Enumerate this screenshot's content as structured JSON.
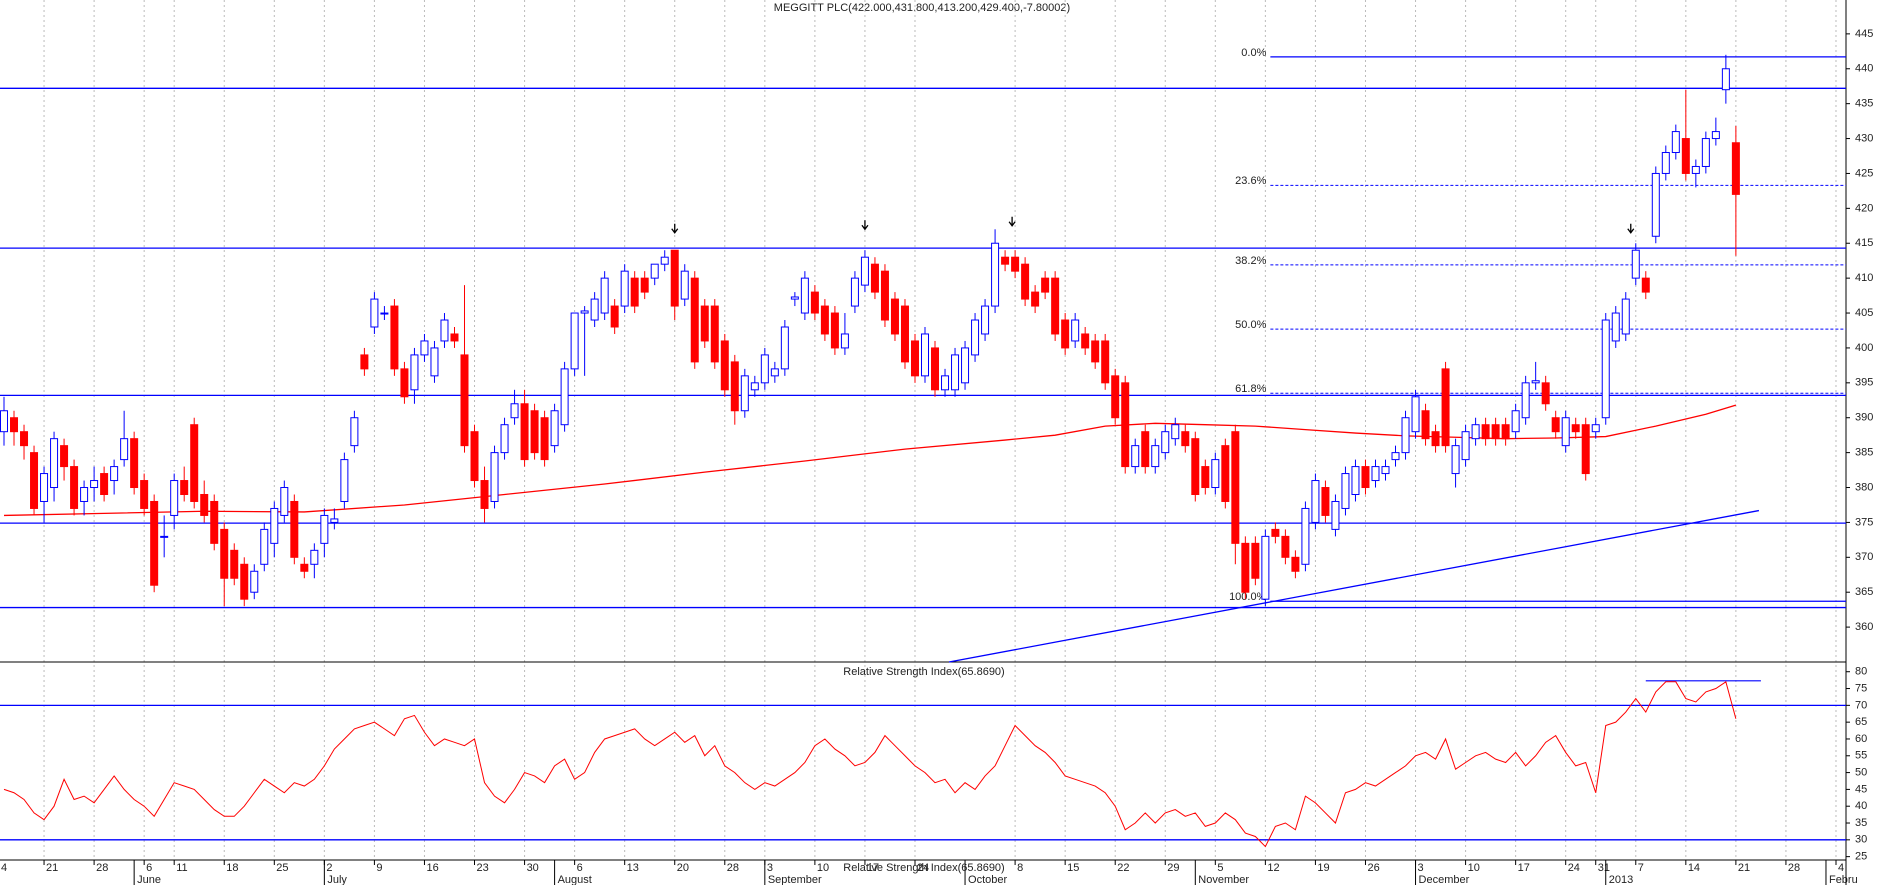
{
  "chart_data": {
    "type": "candlestick",
    "title": "MEGGITT PLC(422.000,431.800,413.200,429.400,-7.80002)",
    "colors": {
      "up": "#0000ff",
      "down": "#ff0000",
      "lines": "#0000ff",
      "ma": "#ff0000"
    },
    "xlim": [
      -0.4,
      184.0
    ],
    "xticks": [
      {
        "value": -0.5,
        "label": "4"
      },
      {
        "value": 4,
        "label": "21"
      },
      {
        "value": 9,
        "label": "28"
      },
      {
        "value": 14,
        "label": "6"
      },
      {
        "value": 17,
        "label": "11"
      },
      {
        "value": 22,
        "label": "18"
      },
      {
        "value": 27,
        "label": "25"
      },
      {
        "value": 32,
        "label": "2"
      },
      {
        "value": 37,
        "label": "9"
      },
      {
        "value": 42,
        "label": "16"
      },
      {
        "value": 47,
        "label": "23"
      },
      {
        "value": 52,
        "label": "30"
      },
      {
        "value": 57,
        "label": "6"
      },
      {
        "value": 62,
        "label": "13"
      },
      {
        "value": 67,
        "label": "20"
      },
      {
        "value": 72,
        "label": "28"
      },
      {
        "value": 76,
        "label": "3"
      },
      {
        "value": 81,
        "label": "10"
      },
      {
        "value": 86,
        "label": "17"
      },
      {
        "value": 91,
        "label": "24"
      },
      {
        "value": 101,
        "label": "8"
      },
      {
        "value": 106,
        "label": "15"
      },
      {
        "value": 111,
        "label": "22"
      },
      {
        "value": 116,
        "label": "29"
      },
      {
        "value": 121,
        "label": "5"
      },
      {
        "value": 126,
        "label": "12"
      },
      {
        "value": 131,
        "label": "19"
      },
      {
        "value": 136,
        "label": "26"
      },
      {
        "value": 141,
        "label": "3"
      },
      {
        "value": 146,
        "label": "10"
      },
      {
        "value": 151,
        "label": "17"
      },
      {
        "value": 156,
        "label": "24"
      },
      {
        "value": 159,
        "label": "31"
      },
      {
        "value": 163,
        "label": "7"
      },
      {
        "value": 168,
        "label": "14"
      },
      {
        "value": 173,
        "label": "21"
      },
      {
        "value": 178,
        "label": "28"
      },
      {
        "value": 183,
        "label": "4"
      }
    ],
    "months": [
      {
        "value": 13,
        "label": "June"
      },
      {
        "value": 32,
        "label": "July"
      },
      {
        "value": 55,
        "label": "August"
      },
      {
        "value": 76,
        "label": "September"
      },
      {
        "value": 96,
        "label": "October"
      },
      {
        "value": 119,
        "label": "November"
      },
      {
        "value": 141,
        "label": "December"
      },
      {
        "value": 160,
        "label": "2013"
      },
      {
        "value": 182,
        "label": "Febru"
      }
    ],
    "ylim": [
      355,
      446.7
    ],
    "yticks": [
      360,
      365,
      370,
      375,
      380,
      385,
      390,
      395,
      400,
      405,
      410,
      415,
      420,
      425,
      430,
      435,
      440,
      445
    ],
    "ohlc": [
      [
        388,
        393,
        386,
        391
      ],
      [
        390,
        391,
        386,
        388
      ],
      [
        388,
        389,
        384,
        386
      ],
      [
        385,
        386,
        376,
        377
      ],
      [
        378,
        383,
        375,
        382
      ],
      [
        380,
        388,
        378,
        387
      ],
      [
        386,
        387,
        381,
        383
      ],
      [
        383,
        384,
        376,
        377
      ],
      [
        378,
        381,
        376,
        380
      ],
      [
        380,
        383,
        378,
        381
      ],
      [
        382,
        383,
        378,
        379
      ],
      [
        381,
        384,
        379,
        383
      ],
      [
        384,
        391,
        383,
        387
      ],
      [
        387,
        388,
        379,
        380
      ],
      [
        381,
        382,
        376,
        377
      ],
      [
        378,
        379,
        365,
        366
      ],
      [
        373,
        376,
        370,
        373
      ],
      [
        376,
        382,
        374,
        381
      ],
      [
        381,
        383,
        378,
        379
      ],
      [
        389,
        390,
        377,
        378
      ],
      [
        379,
        381,
        375,
        376
      ],
      [
        378,
        379,
        371,
        372
      ],
      [
        374,
        375,
        363,
        367
      ],
      [
        371,
        372,
        366,
        367
      ],
      [
        369,
        370,
        363,
        364
      ],
      [
        365,
        369,
        364,
        368
      ],
      [
        369,
        375,
        368,
        374
      ],
      [
        372,
        378,
        370,
        377
      ],
      [
        376,
        381,
        375,
        380
      ],
      [
        378,
        379,
        369,
        370
      ],
      [
        369,
        370,
        367,
        368
      ],
      [
        369,
        372,
        367,
        371
      ],
      [
        372,
        377,
        370,
        376
      ],
      [
        375,
        377,
        374,
        375.5
      ],
      [
        378,
        385,
        377,
        384
      ],
      [
        386,
        391,
        385,
        390
      ],
      [
        399,
        400,
        396,
        397
      ],
      [
        403,
        408,
        402,
        407
      ],
      [
        405,
        406,
        404,
        405
      ],
      [
        406,
        407,
        396,
        397
      ],
      [
        397,
        398,
        392,
        393
      ],
      [
        394,
        400,
        392,
        399
      ],
      [
        399,
        402,
        398,
        401
      ],
      [
        396,
        401,
        395,
        400
      ],
      [
        401,
        405,
        400,
        404
      ],
      [
        402,
        403,
        400,
        401
      ],
      [
        399,
        409,
        385,
        386
      ],
      [
        388,
        389,
        380,
        381
      ],
      [
        381,
        383,
        375,
        377
      ],
      [
        378,
        386,
        377,
        385
      ],
      [
        385,
        390,
        384,
        389
      ],
      [
        390,
        394,
        389,
        392
      ],
      [
        392,
        394,
        383,
        384
      ],
      [
        391,
        392,
        384,
        385
      ],
      [
        390,
        391,
        383,
        384
      ],
      [
        386,
        392,
        385,
        391
      ],
      [
        389,
        398,
        388,
        397
      ],
      [
        397,
        405,
        396,
        405
      ],
      [
        405,
        406,
        396,
        405.3
      ],
      [
        404,
        408,
        403,
        407
      ],
      [
        405,
        411,
        404,
        410
      ],
      [
        406,
        407,
        402,
        403
      ],
      [
        406,
        412,
        405,
        411
      ],
      [
        410,
        411,
        405,
        406
      ],
      [
        410,
        411,
        407,
        408
      ],
      [
        410,
        412,
        409,
        412
      ],
      [
        412,
        414,
        411,
        413
      ],
      [
        414,
        414,
        404,
        406
      ],
      [
        407,
        412,
        406,
        411
      ],
      [
        410,
        411,
        397,
        398
      ],
      [
        406,
        407,
        400,
        401
      ],
      [
        406,
        407,
        397,
        398
      ],
      [
        401,
        402,
        393,
        394
      ],
      [
        398,
        399,
        389,
        391
      ],
      [
        391,
        397,
        390,
        396
      ],
      [
        394,
        396,
        393,
        395
      ],
      [
        395,
        400,
        394,
        399
      ],
      [
        396,
        398,
        395,
        397
      ],
      [
        397,
        404,
        396,
        403
      ],
      [
        407,
        408,
        406,
        407.3
      ],
      [
        405,
        411,
        404,
        410
      ],
      [
        408,
        409,
        404,
        405
      ],
      [
        406,
        407,
        401,
        402
      ],
      [
        405,
        406,
        399,
        400
      ],
      [
        400,
        405,
        399,
        402
      ],
      [
        406,
        411,
        405,
        410
      ],
      [
        409,
        414,
        408,
        413
      ],
      [
        412,
        413,
        407,
        408
      ],
      [
        411,
        412,
        403,
        404
      ],
      [
        407,
        408,
        401,
        402
      ],
      [
        406,
        407,
        397,
        398
      ],
      [
        401,
        402,
        395,
        396
      ],
      [
        396,
        403,
        395,
        402
      ],
      [
        400,
        401,
        393,
        394
      ],
      [
        394,
        397,
        393,
        396
      ],
      [
        394,
        400,
        393,
        399
      ],
      [
        395,
        401,
        394,
        400
      ],
      [
        399,
        405,
        398,
        404
      ],
      [
        402,
        407,
        401,
        406
      ],
      [
        406,
        417,
        405,
        415
      ],
      [
        413,
        414,
        411,
        412
      ],
      [
        413,
        414,
        410,
        411
      ],
      [
        412,
        413,
        406,
        407
      ],
      [
        408,
        409,
        405,
        406
      ],
      [
        410,
        411,
        407,
        408
      ],
      [
        410,
        411,
        401,
        402
      ],
      [
        404,
        405,
        399,
        400
      ],
      [
        401,
        405,
        400,
        404
      ],
      [
        402,
        403,
        399,
        400
      ],
      [
        401,
        402,
        397,
        398
      ],
      [
        401,
        402,
        394,
        395
      ],
      [
        396,
        397,
        389,
        390
      ],
      [
        395,
        396,
        382,
        383
      ],
      [
        383,
        387,
        382,
        386
      ],
      [
        388,
        389,
        382,
        383
      ],
      [
        383,
        387,
        382,
        386
      ],
      [
        385,
        389,
        384,
        388
      ],
      [
        387,
        390,
        386,
        389
      ],
      [
        388,
        389,
        385,
        386
      ],
      [
        387,
        388,
        378,
        379
      ],
      [
        383,
        384,
        379,
        380
      ],
      [
        380,
        385,
        379,
        384
      ],
      [
        386,
        387,
        377,
        378
      ],
      [
        388,
        389,
        369,
        372
      ],
      [
        372,
        373,
        364,
        365
      ],
      [
        372,
        373,
        366,
        367
      ],
      [
        364,
        374,
        363,
        373
      ],
      [
        374,
        375,
        372,
        373
      ],
      [
        373,
        374,
        369,
        370
      ],
      [
        370,
        371,
        367,
        368
      ],
      [
        369,
        378,
        368,
        377
      ],
      [
        375,
        382,
        374,
        381
      ],
      [
        380,
        381,
        375,
        376
      ],
      [
        374,
        379,
        373,
        378
      ],
      [
        377,
        383,
        376,
        382
      ],
      [
        379,
        384,
        378,
        383
      ],
      [
        383,
        384,
        379,
        380
      ],
      [
        381,
        384,
        380,
        383
      ],
      [
        382,
        384,
        381,
        383
      ],
      [
        384,
        386,
        383,
        385
      ],
      [
        385,
        391,
        384,
        390
      ],
      [
        388,
        394,
        387,
        393
      ],
      [
        391,
        392,
        386,
        387
      ],
      [
        388,
        389,
        385,
        386
      ],
      [
        397,
        398,
        385,
        386
      ],
      [
        382,
        387,
        380,
        386
      ],
      [
        384,
        389,
        383,
        388
      ],
      [
        387,
        390,
        386,
        389
      ],
      [
        389,
        390,
        386,
        387
      ],
      [
        389,
        390,
        386,
        387
      ],
      [
        389,
        390,
        386,
        387
      ],
      [
        388,
        392,
        387,
        391
      ],
      [
        390,
        396,
        389,
        395
      ],
      [
        395,
        398,
        394,
        395.3
      ],
      [
        395,
        396,
        391,
        392
      ],
      [
        390,
        391,
        387,
        388
      ],
      [
        386,
        391,
        385,
        390
      ],
      [
        389,
        390,
        387,
        388
      ],
      [
        389,
        390,
        381,
        382
      ],
      [
        388,
        390,
        387,
        389
      ],
      [
        390,
        405,
        389,
        404
      ],
      [
        401,
        406,
        400,
        405
      ],
      [
        402,
        408,
        401,
        407
      ],
      [
        410,
        415,
        409,
        414
      ],
      [
        410,
        411,
        407,
        408
      ],
      [
        416,
        426,
        415,
        425
      ],
      [
        425,
        429,
        424,
        428
      ],
      [
        428,
        432,
        427,
        431
      ],
      [
        430,
        437,
        424,
        425
      ],
      [
        425,
        427,
        423,
        426
      ],
      [
        426,
        431,
        425,
        430
      ],
      [
        430,
        433,
        429,
        431
      ],
      [
        437,
        442,
        435,
        440
      ],
      [
        429.4,
        431.8,
        413.2,
        422
      ]
    ],
    "hlines": [
      437.2,
      414.3,
      393.2,
      374.9,
      362.8
    ],
    "fib": {
      "x0": 126.5,
      "levels": [
        {
          "value": 441.7,
          "label": "0.0%"
        },
        {
          "value": 423.3,
          "label": "23.6%"
        },
        {
          "value": 411.9,
          "label": "38.2%"
        },
        {
          "value": 402.7,
          "label": "50.0%"
        },
        {
          "value": 393.5,
          "label": "61.8%"
        },
        {
          "value": 363.7,
          "label": "100.0%"
        }
      ]
    },
    "trend": {
      "x": [
        94.4,
        175.3
      ],
      "values": [
        355,
        376.7
      ]
    },
    "arrows": [
      {
        "x": 67,
        "y": 416.5
      },
      {
        "x": 86,
        "y": 417
      },
      {
        "x": 100.7,
        "y": 417.5
      },
      {
        "x": 162.5,
        "y": 416.5
      }
    ],
    "ma": {
      "x": [
        0,
        10,
        20,
        30,
        40,
        50,
        60,
        70,
        80,
        90,
        100,
        105,
        110,
        115,
        120,
        125,
        130,
        135,
        140,
        145,
        150,
        155,
        160,
        165,
        170,
        173
      ],
      "values": [
        376,
        376.3,
        376.6,
        376.5,
        377.5,
        379,
        380.5,
        382.2,
        383.8,
        385.5,
        386.8,
        387.5,
        388.8,
        389.2,
        389,
        388.8,
        388.3,
        387.8,
        387.4,
        387.2,
        387,
        387.1,
        387.3,
        388.8,
        390.5,
        391.8
      ]
    },
    "rsi": {
      "title": "Relative Strength Index(65.8690)",
      "color": "#ff0000",
      "ylim": [
        24,
        82
      ],
      "yticks": [
        25,
        30,
        35,
        40,
        45,
        50,
        55,
        60,
        65,
        70,
        75,
        80
      ],
      "hlines": [
        70,
        30
      ],
      "resistance": {
        "x": [
          164,
          175.5
        ],
        "values": [
          77.3,
          77.3
        ]
      },
      "values": [
        45,
        44,
        42,
        38,
        36,
        40,
        48,
        42,
        43,
        41,
        45,
        49,
        45,
        42,
        40,
        37,
        42,
        47,
        46,
        45,
        42,
        39,
        37,
        37,
        40,
        44,
        48,
        46,
        44,
        47,
        46,
        48,
        52,
        57,
        60,
        63,
        64,
        65,
        63,
        61,
        66,
        67,
        62,
        58,
        60,
        59,
        58,
        60,
        47,
        43,
        41,
        45,
        50,
        49,
        47,
        52,
        54,
        48,
        50,
        56,
        60,
        61,
        62,
        63,
        60,
        58,
        60,
        62,
        59,
        61,
        55,
        58,
        52,
        50,
        47,
        45,
        47,
        46,
        48,
        50,
        53,
        58,
        60,
        57,
        55,
        52,
        53,
        56,
        61,
        58,
        55,
        52,
        50,
        47,
        48,
        44,
        47,
        45,
        49,
        52,
        58,
        64,
        61,
        58,
        56,
        53,
        49,
        48,
        47,
        46,
        44,
        40,
        33,
        35,
        38,
        35,
        38,
        39,
        37,
        38,
        34,
        35,
        38,
        36,
        32,
        31,
        28,
        34,
        35,
        33,
        43,
        41,
        38,
        35,
        44,
        45,
        47,
        46,
        48,
        50,
        52,
        55,
        56,
        54,
        60,
        51,
        53,
        55,
        56,
        54,
        53,
        56,
        52,
        55,
        59,
        61,
        56,
        52,
        53,
        44,
        64,
        65,
        68,
        72,
        68,
        74,
        77,
        77,
        72,
        71,
        74,
        75,
        77,
        66
      ]
    }
  }
}
